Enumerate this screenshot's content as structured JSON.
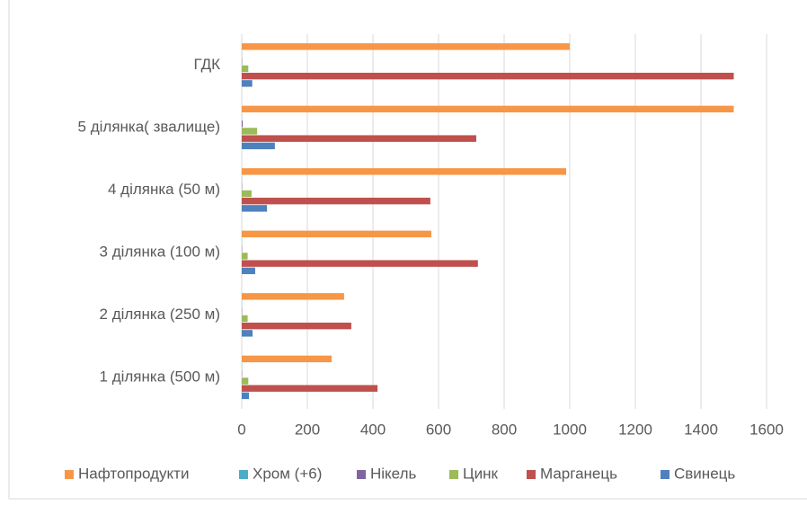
{
  "chart_data": {
    "type": "hbar",
    "categories": [
      "1 ділянка (500 м)",
      "2 ділянка (250 м)",
      "3 ділянка (100 м)",
      "4 ділянка (50 м)",
      "5 ділянка( звалище)",
      "ГДК"
    ],
    "series": [
      {
        "name": "Нафтопродукти",
        "color": "#f79646",
        "values": [
          274,
          312,
          578,
          989,
          1500,
          1000
        ]
      },
      {
        "name": "Хром (+6)",
        "color": "#4bacc6",
        "values": [
          0.5,
          0.5,
          0.5,
          0.5,
          0.5,
          0.5
        ]
      },
      {
        "name": "Нікель",
        "color": "#8064a2",
        "values": [
          1,
          1,
          1,
          1,
          3,
          1
        ]
      },
      {
        "name": "Цинк",
        "color": "#9bbb59",
        "values": [
          20,
          18,
          18,
          30,
          47,
          20
        ]
      },
      {
        "name": "Марганець",
        "color": "#c0504d",
        "values": [
          414,
          334,
          720,
          575,
          715,
          1500
        ]
      },
      {
        "name": "Свинець",
        "color": "#4f81bd",
        "values": [
          22,
          33,
          41,
          77,
          101,
          32
        ]
      }
    ],
    "xlim": [
      0,
      1600
    ],
    "xticks": [
      0,
      200,
      400,
      600,
      800,
      1000,
      1200,
      1400,
      1600
    ],
    "grid": true,
    "legend": "bottom"
  }
}
